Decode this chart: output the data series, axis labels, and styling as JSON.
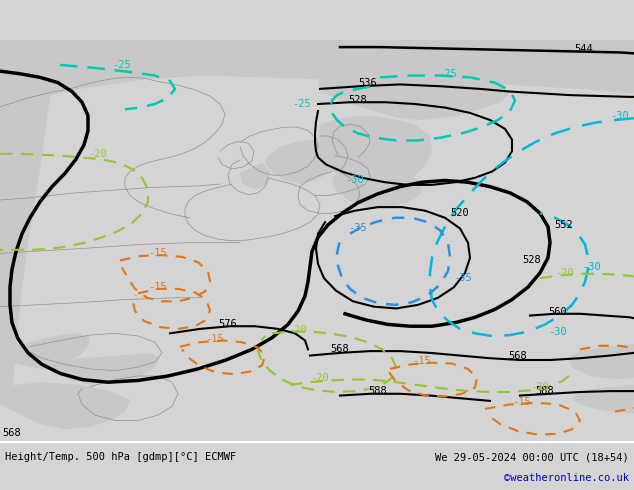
{
  "title_left": "Height/Temp. 500 hPa [gdmp][°C] ECMWF",
  "title_right": "We 29-05-2024 00:00 UTC (18+54)",
  "credit": "©weatheronline.co.uk",
  "bg_color": "#d4d4d4",
  "map_bg": "#c8eea0",
  "figw": 6.34,
  "figh": 4.9,
  "dpi": 100
}
